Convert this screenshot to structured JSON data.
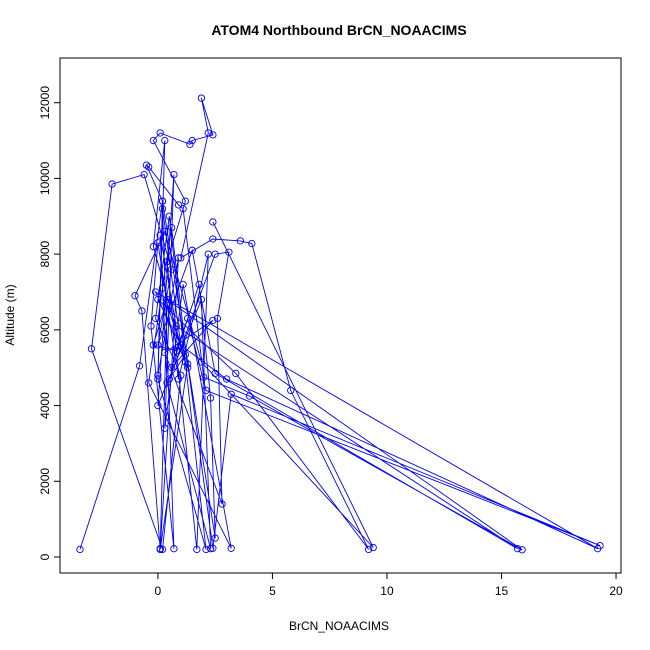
{
  "chart_data": {
    "type": "scatter",
    "title": "ATOM4 Northbound BrCN_NOAACIMS",
    "xlabel": "BrCN_NOAACIMS",
    "ylabel": "Altitude (m)",
    "xlim": [
      -3.4,
      19.3
    ],
    "ylim": [
      0,
      12150
    ],
    "x_ticks": [
      0,
      5,
      10,
      15,
      20
    ],
    "y_ticks": [
      0,
      2000,
      4000,
      6000,
      8000,
      10000,
      12000
    ],
    "grid": false,
    "legend": "none",
    "colors": {
      "series": "#0000ff"
    },
    "series": [
      {
        "points": [
          [
            -3.4,
            200
          ],
          [
            -0.8,
            5050
          ],
          [
            0.2,
            9400
          ],
          [
            0.0,
            4800
          ],
          [
            0.9,
            7900
          ],
          [
            0.1,
            220
          ],
          [
            0.4,
            6700
          ],
          [
            1.2,
            5150
          ],
          [
            -0.2,
            8200
          ],
          [
            0.3,
            11000
          ],
          [
            0.0,
            4700
          ],
          [
            2.1,
            200
          ],
          [
            0.5,
            9000
          ],
          [
            -0.1,
            6300
          ],
          [
            1.0,
            4800
          ],
          [
            0.2,
            200
          ],
          [
            -2.9,
            5500
          ],
          [
            -2.0,
            9850
          ],
          [
            -0.6,
            10100
          ],
          [
            0.6,
            7600
          ],
          [
            0.0,
            5600
          ],
          [
            1.5,
            8100
          ],
          [
            2.5,
            4850
          ],
          [
            15.7,
            220
          ],
          [
            0.8,
            6100
          ],
          [
            0.1,
            8500
          ],
          [
            0.4,
            4600
          ],
          [
            2.3,
            220
          ],
          [
            1.9,
            6800
          ],
          [
            0.0,
            4000
          ],
          [
            0.7,
            10100
          ],
          [
            0.3,
            3400
          ],
          [
            1.1,
            7200
          ],
          [
            3.2,
            230
          ],
          [
            -0.4,
            4600
          ],
          [
            0.2,
            7100
          ],
          [
            0.6,
            8700
          ],
          [
            1.3,
            5000
          ],
          [
            -0.1,
            7000
          ],
          [
            19.2,
            220
          ],
          [
            3.0,
            4700
          ],
          [
            1.0,
            5600
          ],
          [
            0.2,
            9200
          ],
          [
            0.7,
            220
          ],
          [
            -0.3,
            6100
          ],
          [
            0.0,
            8300
          ],
          [
            0.9,
            4700
          ],
          [
            2.2,
            8000
          ],
          [
            1.7,
            200
          ],
          [
            0.4,
            7800
          ],
          [
            1.2,
            9400
          ],
          [
            -0.2,
            11000
          ],
          [
            0.1,
            11200
          ],
          [
            1.4,
            10900
          ],
          [
            1.5,
            11000
          ],
          [
            2.4,
            11150
          ],
          [
            1.9,
            12120
          ],
          [
            2.2,
            11200
          ],
          [
            1.0,
            7900
          ],
          [
            2.4,
            8400
          ],
          [
            3.6,
            8350
          ],
          [
            4.1,
            8280
          ],
          [
            5.8,
            4400
          ],
          [
            9.2,
            200
          ],
          [
            3.4,
            4850
          ],
          [
            0.0,
            6800
          ],
          [
            1.2,
            5350
          ],
          [
            0.5,
            4700
          ],
          [
            2.5,
            8000
          ],
          [
            3.1,
            8050
          ],
          [
            2.6,
            6300
          ],
          [
            2.8,
            1400
          ],
          [
            0.3,
            5400
          ],
          [
            2.4,
            6250
          ],
          [
            0.6,
            5000
          ],
          [
            1.8,
            7200
          ],
          [
            2.3,
            4200
          ],
          [
            2.5,
            500
          ],
          [
            0.2,
            9400
          ],
          [
            -0.5,
            10350
          ],
          [
            -0.4,
            10300
          ],
          [
            0.9,
            9300
          ],
          [
            1.1,
            9200
          ],
          [
            2.0,
            4750
          ],
          [
            4.0,
            4250
          ],
          [
            15.9,
            190
          ],
          [
            0.4,
            6800
          ],
          [
            -0.2,
            5600
          ],
          [
            0.8,
            5450
          ],
          [
            1.3,
            6300
          ],
          [
            2.1,
            4400
          ],
          [
            19.3,
            300
          ],
          [
            3.2,
            4300
          ],
          [
            2.4,
            230
          ],
          [
            1.3,
            5100
          ],
          [
            0.1,
            200
          ],
          [
            -0.7,
            6500
          ],
          [
            -1.0,
            6900
          ],
          [
            0.3,
            8600
          ],
          [
            1.9,
            5150
          ],
          [
            9.4,
            250
          ],
          [
            2.4,
            8850
          ]
        ]
      }
    ]
  }
}
